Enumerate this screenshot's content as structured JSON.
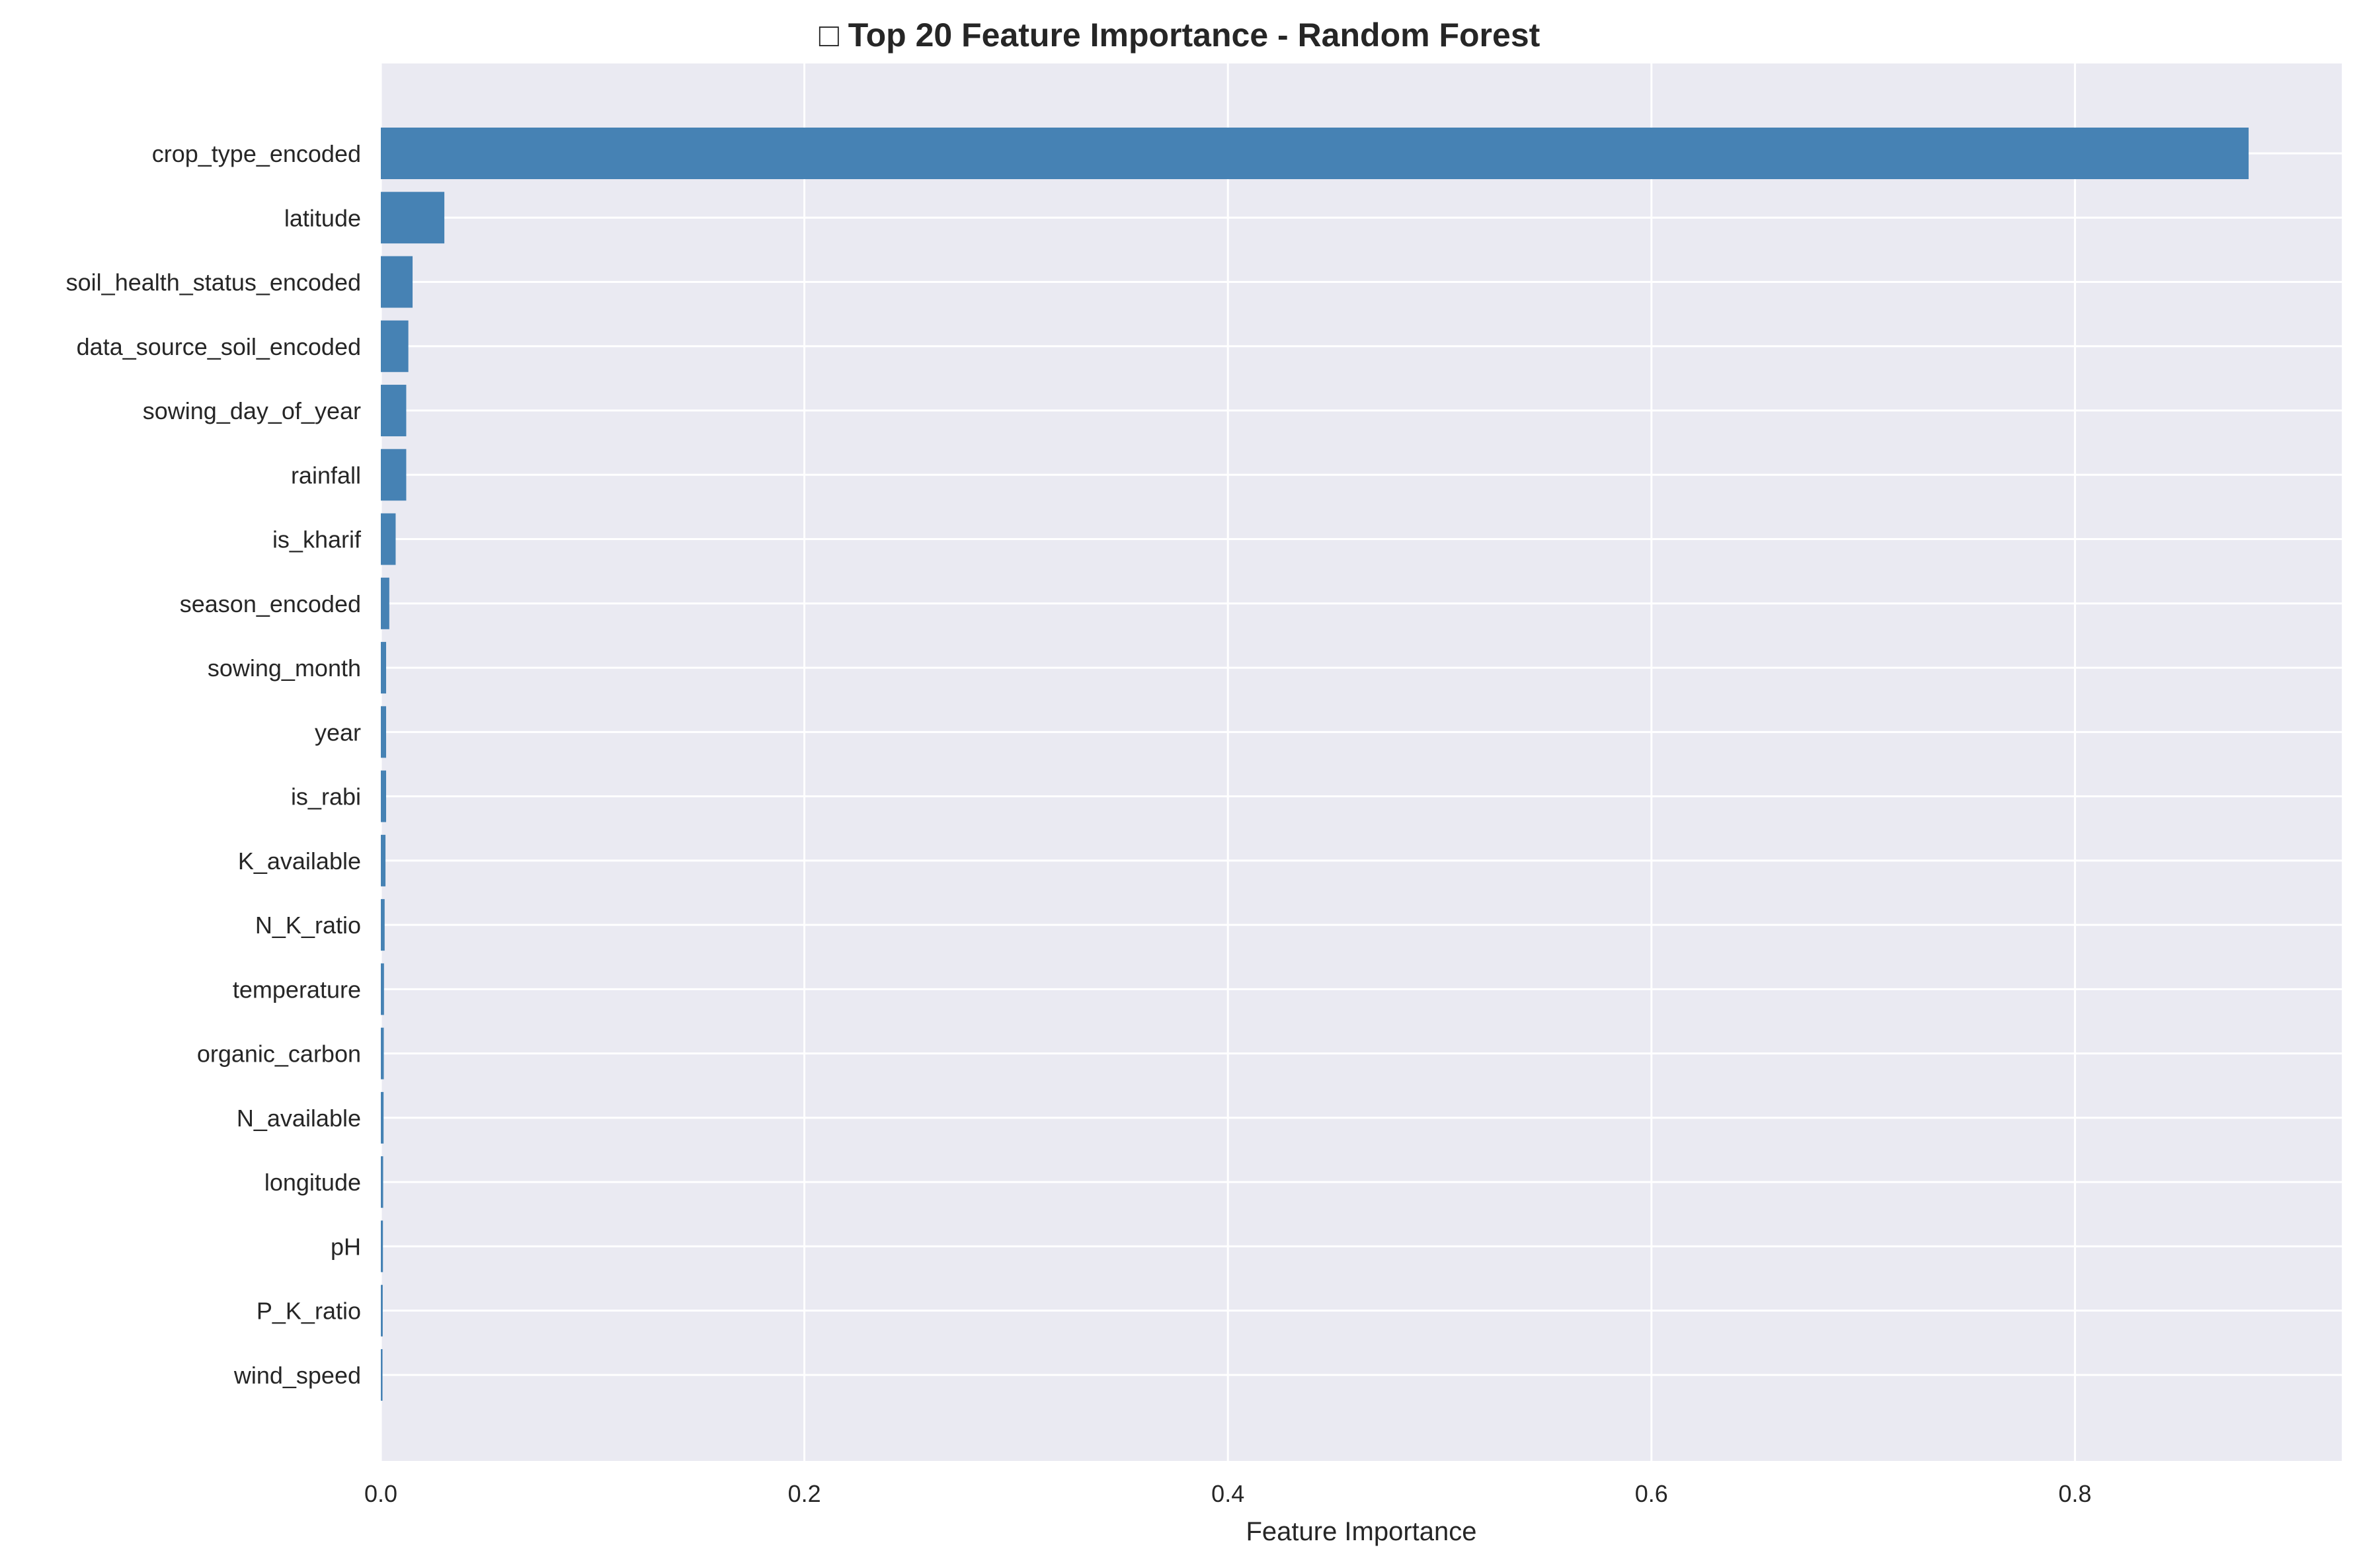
{
  "chart_data": {
    "type": "bar",
    "orientation": "horizontal",
    "title": "□ Top 20 Feature Importance - Random Forest",
    "xlabel": "Feature Importance",
    "ylabel": "",
    "xlim": [
      0,
      0.926
    ],
    "xticks": [
      "0.0",
      "0.2",
      "0.4",
      "0.6",
      "0.8"
    ],
    "grid": true,
    "legend": "none",
    "colors": {
      "bar": "#4682b4",
      "plot_background": "#eaeaf2",
      "grid": "#ffffff",
      "text": "#262626"
    },
    "categories": [
      "crop_type_encoded",
      "latitude",
      "soil_health_status_encoded",
      "data_source_soil_encoded",
      "sowing_day_of_year",
      "rainfall",
      "is_kharif",
      "season_encoded",
      "sowing_month",
      "year",
      "is_rabi",
      "K_available",
      "N_K_ratio",
      "temperature",
      "organic_carbon",
      "N_available",
      "longitude",
      "pH",
      "P_K_ratio",
      "wind_speed"
    ],
    "values": [
      0.882,
      0.03,
      0.015,
      0.013,
      0.012,
      0.012,
      0.007,
      0.004,
      0.0025,
      0.0025,
      0.0025,
      0.0022,
      0.0018,
      0.0015,
      0.0014,
      0.0013,
      0.0011,
      0.001,
      0.0009,
      0.0008
    ]
  }
}
